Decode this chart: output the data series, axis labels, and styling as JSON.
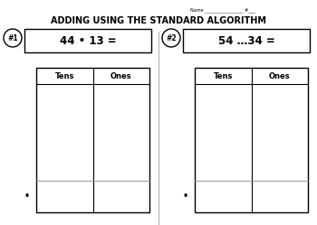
{
  "title": "ADDING USING THE STANDARD ALGORITHM",
  "bg_color": "#ffffff",
  "title_fontsize": 7.0,
  "name_line": "Name _________________ #___",
  "prob1_label": "#1",
  "prob1_equation": "44 • 13 =",
  "prob2_label": "#2",
  "prob2_equation": "54 …34 =",
  "col_header": [
    "Tens",
    "Ones"
  ],
  "plus_sign": "•",
  "header_fontsize": 6.0,
  "eq_fontsize": 8.5,
  "label_fontsize": 5.5,
  "name_fontsize": 3.5
}
